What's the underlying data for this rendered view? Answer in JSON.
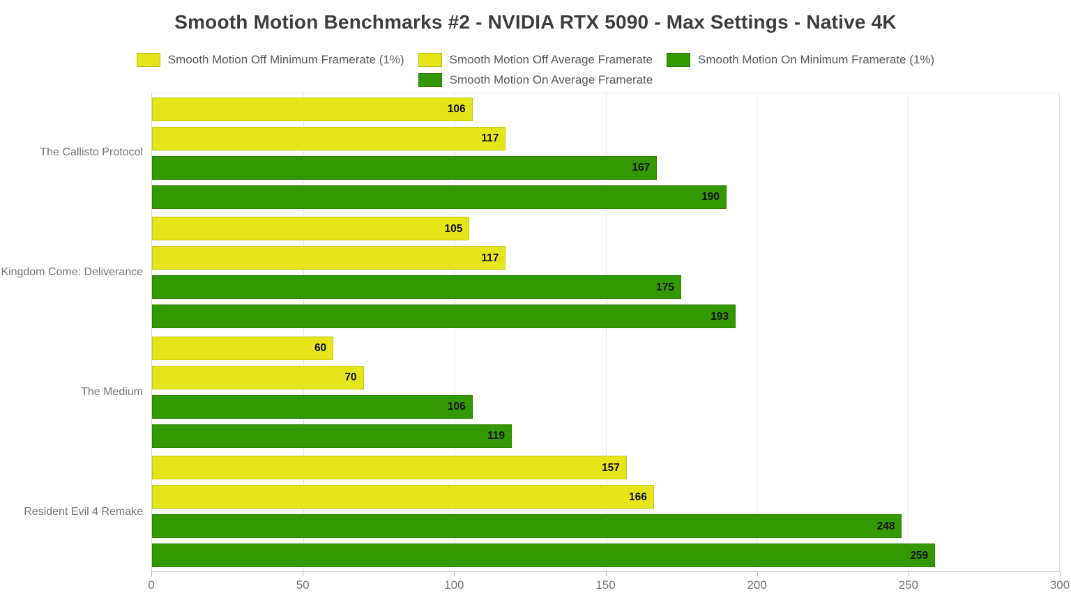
{
  "title": "Smooth Motion Benchmarks #2 - NVIDIA RTX 5090 - Max Settings - Native 4K",
  "colors": {
    "yellow_fill": "#e4e619",
    "yellow_border": "#c3c514",
    "green_fill": "#339900",
    "green_border": "#2b8200",
    "title_text": "#3d3d3d",
    "legend_text": "#595959",
    "axis_text": "#757575",
    "value_text": "#111111",
    "gridline": "#e8e8e8"
  },
  "chart_data": {
    "type": "bar",
    "orientation": "horizontal",
    "title": "Smooth Motion Benchmarks #2 - NVIDIA RTX 5090 - Max Settings - Native 4K",
    "categories": [
      "The Callisto Protocol",
      "Kingdom Come: Deliverance",
      "The Medium",
      "Resident Evil 4 Remake"
    ],
    "series": [
      {
        "name": "Smooth Motion Off Minimum Framerate (1%)",
        "color": "#e4e619",
        "border": "#c3c514",
        "values": [
          106,
          105,
          60,
          157
        ]
      },
      {
        "name": "Smooth Motion Off Average Framerate",
        "color": "#e4e619",
        "border": "#c3c514",
        "values": [
          117,
          117,
          70,
          166
        ]
      },
      {
        "name": "Smooth Motion On Minimum Framerate (1%)",
        "color": "#339900",
        "border": "#2b8200",
        "values": [
          167,
          175,
          106,
          248
        ]
      },
      {
        "name": "Smooth Motion On Average Framerate",
        "color": "#339900",
        "border": "#2b8200",
        "values": [
          190,
          193,
          119,
          259
        ]
      }
    ],
    "x_ticks": [
      0,
      50,
      100,
      150,
      200,
      250,
      300
    ],
    "xlim": [
      0,
      300
    ],
    "xlabel": "",
    "ylabel": "",
    "grid": "vertical",
    "legend_position": "top",
    "legend_rows": [
      [
        0,
        1,
        2
      ],
      [
        3
      ]
    ],
    "value_labels": "inside-end"
  }
}
